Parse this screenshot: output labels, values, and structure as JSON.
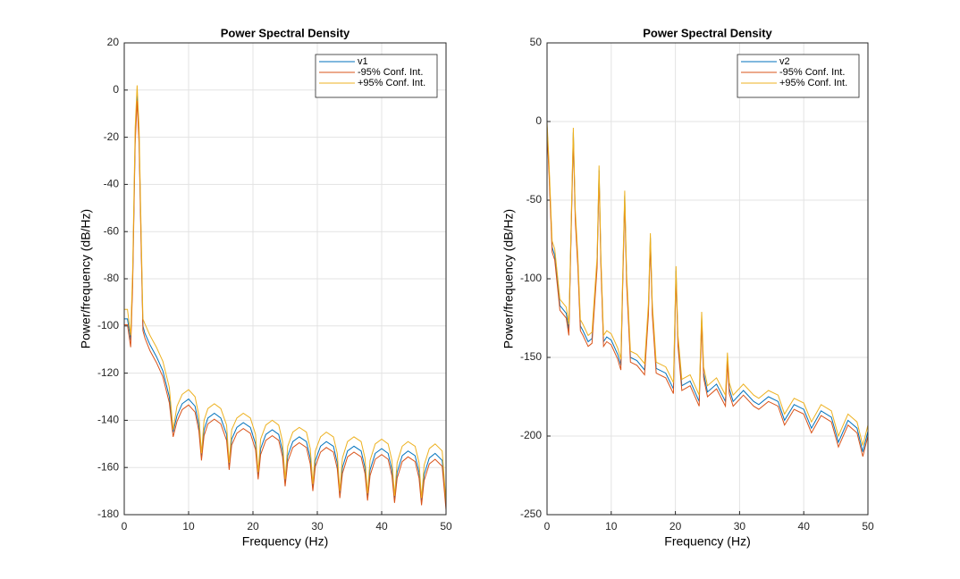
{
  "chart_data": [
    {
      "type": "line",
      "title": "Power Spectral Density",
      "xlabel": "Frequency (Hz)",
      "ylabel": "Power/frequency (dB/Hz)",
      "grid": true,
      "legend": "northeast",
      "xlim": [
        0,
        50
      ],
      "xticks": [
        0,
        10,
        20,
        30,
        40,
        50
      ],
      "ylim": [
        -180,
        20
      ],
      "yticks": [
        -180,
        -160,
        -140,
        -120,
        -100,
        -80,
        -60,
        -40,
        -20,
        0,
        20
      ],
      "x": [
        0,
        0.5,
        1.0,
        1.3,
        1.7,
        2.0,
        2.3,
        2.6,
        2.9,
        3.2,
        4,
        5,
        6,
        7,
        7.6,
        8.2,
        9,
        10,
        11,
        11.6,
        12,
        12.4,
        13,
        14,
        15,
        15.9,
        16.3,
        16.7,
        17.5,
        18.5,
        19.6,
        20.4,
        20.8,
        21.2,
        22,
        23,
        24,
        24.6,
        25,
        25.4,
        26.2,
        27.2,
        28.3,
        28.9,
        29.3,
        29.7,
        30.5,
        31.4,
        32.5,
        33.1,
        33.5,
        33.9,
        34.7,
        35.7,
        36.8,
        37.4,
        37.8,
        38.2,
        39,
        40,
        41,
        41.6,
        42,
        42.4,
        43.2,
        44.1,
        45.2,
        45.8,
        46.2,
        46.6,
        47.4,
        48.3,
        49.4,
        50
      ],
      "series": [
        {
          "name": "v1",
          "color": "#0072bd",
          "values": [
            -97,
            -97,
            -106,
            -80,
            -20,
            -2,
            -20,
            -60,
            -100,
            -103,
            -108,
            -113,
            -119,
            -130,
            -145,
            -138,
            -133,
            -131,
            -134,
            -142,
            -155,
            -144,
            -139,
            -137,
            -139,
            -146,
            -159,
            -148,
            -143,
            -141,
            -143,
            -150,
            -163,
            -152,
            -146,
            -144,
            -146,
            -153,
            -166,
            -155,
            -149,
            -147,
            -149,
            -156,
            -168,
            -157,
            -151,
            -149,
            -151,
            -158,
            -171,
            -160,
            -153,
            -151,
            -153,
            -160,
            -172,
            -161,
            -154,
            -152,
            -154,
            -161,
            -173,
            -162,
            -155,
            -153,
            -155,
            -162,
            -174,
            -163,
            -156,
            -154,
            -157,
            -176
          ]
        },
        {
          "name": "-95% Conf. Int.",
          "color": "#d95319",
          "values": [
            -99.5,
            -99.5,
            -109,
            -83,
            -23,
            -4.5,
            -23,
            -63,
            -102,
            -105,
            -110.5,
            -115.5,
            -121.5,
            -132.5,
            -147,
            -140.5,
            -135.5,
            -133.5,
            -136.5,
            -144.5,
            -157,
            -146.5,
            -141.5,
            -139.5,
            -141.5,
            -148.5,
            -161,
            -150.5,
            -145.5,
            -143.5,
            -145.5,
            -152.5,
            -165,
            -154.5,
            -148.5,
            -146.5,
            -148.5,
            -155.5,
            -168,
            -157.5,
            -151.5,
            -149.5,
            -151.5,
            -158.5,
            -170,
            -159.5,
            -153.5,
            -151.5,
            -153.5,
            -160.5,
            -173,
            -162.5,
            -155.5,
            -153.5,
            -155.5,
            -162.5,
            -174,
            -163.5,
            -156.5,
            -154.5,
            -156.5,
            -163.5,
            -175,
            -164.5,
            -157.5,
            -155.5,
            -157.5,
            -164.5,
            -176,
            -165.5,
            -158.5,
            -156.5,
            -159.5,
            -178
          ]
        },
        {
          "name": "+95% Conf. Int.",
          "color": "#edb120",
          "values": [
            -93,
            -93,
            -104,
            -76,
            -16,
            2,
            -16,
            -56,
            -97,
            -99,
            -104,
            -109,
            -115,
            -126,
            -144,
            -134,
            -129,
            -127,
            -130,
            -138,
            -154,
            -140,
            -135,
            -133,
            -135,
            -142,
            -158,
            -144,
            -139,
            -137,
            -139,
            -146,
            -162,
            -148,
            -142,
            -140,
            -142,
            -149,
            -165,
            -151,
            -145,
            -143,
            -145,
            -152,
            -167,
            -153,
            -147,
            -145,
            -147,
            -154,
            -170,
            -156,
            -149,
            -147,
            -149,
            -156,
            -171,
            -157,
            -150,
            -148,
            -150,
            -157,
            -172,
            -158,
            -151,
            -149,
            -151,
            -158,
            -173,
            -159,
            -152,
            -150,
            -153,
            -175
          ]
        }
      ]
    },
    {
      "type": "line",
      "title": "Power Spectral Density",
      "xlabel": "Frequency (Hz)",
      "ylabel": "Power/frequency (dB/Hz)",
      "grid": true,
      "legend": "northeast",
      "xlim": [
        0,
        50
      ],
      "xticks": [
        0,
        10,
        20,
        30,
        40,
        50
      ],
      "ylim": [
        -250,
        50
      ],
      "yticks": [
        -250,
        -200,
        -150,
        -100,
        -50,
        0,
        50
      ],
      "x": [
        0,
        0.3,
        0.8,
        1.2,
        2,
        3,
        3.4,
        3.8,
        4.1,
        4.4,
        4.8,
        5.2,
        5.6,
        6.4,
        7,
        7.8,
        8.1,
        8.4,
        8.8,
        9.3,
        10,
        11,
        11.5,
        11.8,
        12.1,
        12.4,
        13,
        14,
        15.2,
        15.8,
        16.1,
        16.4,
        17,
        18.5,
        19.7,
        20.1,
        20.4,
        21,
        22.3,
        23.7,
        24.1,
        24.4,
        25,
        26.4,
        27.8,
        28.1,
        28.4,
        29,
        30.6,
        32.2,
        33,
        34.5,
        36,
        37,
        38.5,
        40,
        41.2,
        42.7,
        44.3,
        45.4,
        46.9,
        48.3,
        49.2,
        50
      ],
      "series": [
        {
          "name": "v2",
          "color": "#0072bd",
          "values": [
            -3,
            -30,
            -80,
            -85,
            -117,
            -122,
            -133,
            -60,
            -7,
            -60,
            -90,
            -130,
            -133,
            -140,
            -138,
            -90,
            -31,
            -90,
            -140,
            -137,
            -139,
            -148,
            -155,
            -100,
            -47,
            -100,
            -150,
            -152,
            -158,
            -120,
            -74,
            -120,
            -157,
            -160,
            -170,
            -95,
            -140,
            -168,
            -165,
            -178,
            -125,
            -160,
            -172,
            -167,
            -178,
            -150,
            -170,
            -178,
            -171,
            -178,
            -180,
            -175,
            -178,
            -190,
            -180,
            -183,
            -195,
            -184,
            -188,
            -204,
            -190,
            -195,
            -210,
            -197
          ]
        },
        {
          "name": "-95% Conf. Int.",
          "color": "#d95319",
          "values": [
            -6,
            -33,
            -83,
            -88,
            -120,
            -125,
            -136,
            -63,
            -10,
            -63,
            -93,
            -133,
            -136,
            -143,
            -141,
            -93,
            -34,
            -93,
            -143,
            -140,
            -142,
            -151,
            -158,
            -103,
            -50,
            -103,
            -153,
            -155,
            -161,
            -123,
            -77,
            -123,
            -160,
            -163,
            -173,
            -98,
            -143,
            -171,
            -168,
            -181,
            -128,
            -163,
            -175,
            -170,
            -181,
            -153,
            -173,
            -181,
            -174,
            -181,
            -183,
            -178,
            -181,
            -193,
            -183,
            -186,
            -198,
            -187,
            -191,
            -207,
            -193,
            -198,
            -213,
            -200
          ]
        },
        {
          "name": "+95% Conf. Int.",
          "color": "#edb120",
          "values": [
            0,
            -26,
            -76,
            -81,
            -113,
            -118,
            -129,
            -56,
            -4,
            -56,
            -86,
            -126,
            -129,
            -136,
            -134,
            -86,
            -28,
            -86,
            -136,
            -133,
            -135,
            -144,
            -151,
            -96,
            -44,
            -96,
            -146,
            -148,
            -154,
            -116,
            -71,
            -116,
            -153,
            -156,
            -166,
            -92,
            -136,
            -164,
            -161,
            -174,
            -121,
            -156,
            -168,
            -163,
            -174,
            -147,
            -166,
            -174,
            -167,
            -174,
            -176,
            -171,
            -174,
            -186,
            -176,
            -179,
            -191,
            -180,
            -184,
            -200,
            -186,
            -191,
            -206,
            -193
          ]
        }
      ]
    }
  ]
}
